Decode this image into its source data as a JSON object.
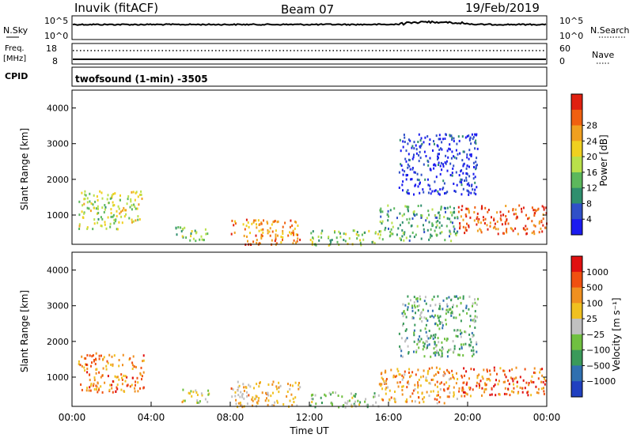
{
  "header": {
    "station": "Inuvik (fitACF)",
    "beam": "Beam 07",
    "date": "19/Feb/2019"
  },
  "strips": {
    "nsky_label": "N.Sky",
    "nsearch_label": "N.Search",
    "freq_label_1": "Freq.",
    "freq_label_2": "[MHz]",
    "nave_label": "Nave",
    "cpid_label": "CPID",
    "cpid_value": "twofsound (1-min) -3505",
    "nsky_ticks": [
      "10^5",
      "10^0"
    ],
    "nsearch_ticks": [
      "10^5",
      "10^0"
    ],
    "freq_ticks": [
      "18",
      "8"
    ],
    "nave_ticks": [
      "60",
      "0"
    ]
  },
  "chart_data": [
    {
      "type": "heatmap",
      "name": "power",
      "ylabel": "Slant Range [km]",
      "ylim": [
        180,
        4500
      ],
      "yticks": [
        "1000",
        "2000",
        "3000",
        "4000"
      ],
      "xlim_hours": [
        0,
        24
      ],
      "colorbar_label": "Power [dB]",
      "colorbar_ticks": [
        "4",
        "8",
        "12",
        "16",
        "20",
        "24",
        "28"
      ],
      "colorbar_colors": [
        "#1b1bf0",
        "#3050c8",
        "#2f8f6e",
        "#5cb85c",
        "#b9e04a",
        "#f0d020",
        "#f0a020",
        "#f06010",
        "#e02010"
      ],
      "echo_regions": [
        {
          "t0": 0.3,
          "t1": 2.3,
          "r0": 600,
          "r1": 1700,
          "level": 0.5
        },
        {
          "t0": 2.3,
          "t1": 3.6,
          "r0": 800,
          "r1": 1700,
          "level": 0.55
        },
        {
          "t0": 5.2,
          "t1": 7.0,
          "r0": 300,
          "r1": 700,
          "level": 0.45
        },
        {
          "t0": 8.0,
          "t1": 11.5,
          "r0": 180,
          "r1": 900,
          "level": 0.75
        },
        {
          "t0": 12.0,
          "t1": 15.5,
          "r0": 180,
          "r1": 600,
          "level": 0.45
        },
        {
          "t0": 15.5,
          "t1": 19.5,
          "r0": 300,
          "r1": 1300,
          "level": 0.35
        },
        {
          "t0": 19.5,
          "t1": 24.0,
          "r0": 500,
          "r1": 1300,
          "level": 0.85
        },
        {
          "t0": 16.5,
          "t1": 20.5,
          "r0": 1600,
          "r1": 3300,
          "level": 0.08
        }
      ]
    },
    {
      "type": "heatmap",
      "name": "velocity",
      "ylabel": "Slant Range [km]",
      "ylim": [
        180,
        4500
      ],
      "yticks": [
        "1000",
        "2000",
        "3000",
        "4000"
      ],
      "xlabel": "Time UT",
      "xticks": [
        "00:00",
        "04:00",
        "08:00",
        "12:00",
        "16:00",
        "20:00",
        "00:00"
      ],
      "xlim_hours": [
        0,
        24
      ],
      "colorbar_label": "Velocity [m s⁻¹]",
      "colorbar_ticks": [
        "1000",
        "500",
        "100",
        "25",
        "−25",
        "−100",
        "−500",
        "−1000"
      ],
      "colorbar_colors": [
        "#2040c0",
        "#3070b0",
        "#3a9a5a",
        "#70c040",
        "#c0c0c0",
        "#f0c020",
        "#f09020",
        "#f05010",
        "#e01010"
      ],
      "echo_regions": [
        {
          "t0": 0.3,
          "t1": 3.6,
          "r0": 600,
          "r1": 1700,
          "level": 0.75
        },
        {
          "t0": 5.5,
          "t1": 7.0,
          "r0": 300,
          "r1": 700,
          "level": 0.5
        },
        {
          "t0": 8.0,
          "t1": 11.5,
          "r0": 180,
          "r1": 900,
          "level": 0.62
        },
        {
          "t0": 12.0,
          "t1": 15.5,
          "r0": 180,
          "r1": 600,
          "level": 0.4
        },
        {
          "t0": 15.5,
          "t1": 19.5,
          "r0": 300,
          "r1": 1300,
          "level": 0.7
        },
        {
          "t0": 19.5,
          "t1": 24.0,
          "r0": 500,
          "r1": 1300,
          "level": 0.8
        },
        {
          "t0": 16.5,
          "t1": 20.5,
          "r0": 1600,
          "r1": 3300,
          "level": 0.35
        }
      ]
    }
  ]
}
